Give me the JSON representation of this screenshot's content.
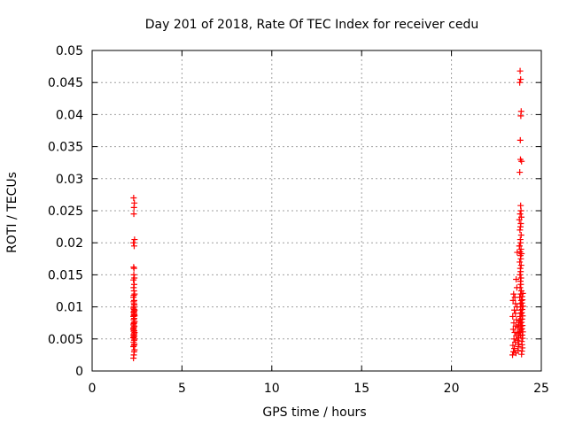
{
  "chart_data": {
    "type": "scatter",
    "title": "Day 201 of 2018, Rate Of TEC Index for receiver cedu",
    "xlabel": "GPS time / hours",
    "ylabel": "ROTI / TECUs",
    "xlim": [
      0,
      25
    ],
    "ylim": [
      0,
      0.05
    ],
    "xticks": [
      0,
      5,
      10,
      15,
      20,
      25
    ],
    "xtick_labels": [
      "0",
      "5",
      "10",
      "15",
      "20",
      "25"
    ],
    "yticks": [
      0,
      0.005,
      0.01,
      0.015,
      0.02,
      0.025,
      0.03,
      0.035,
      0.04,
      0.045,
      0.05
    ],
    "ytick_labels": [
      "0",
      "0.005",
      "0.01",
      "0.015",
      "0.02",
      "0.025",
      "0.03",
      "0.035",
      "0.04",
      "0.045",
      "0.05"
    ],
    "grid": true,
    "marker": "+",
    "color": "#ff0000",
    "series": [
      {
        "x": [
          2.3,
          2.32,
          2.34,
          2.36,
          2.3,
          2.33,
          2.35,
          2.31,
          2.34,
          2.36,
          2.29,
          2.32,
          2.35,
          2.3,
          2.33,
          2.36,
          2.31,
          2.34,
          2.29,
          2.32,
          2.35,
          2.3,
          2.33,
          2.36,
          2.31,
          2.34,
          2.3,
          2.32,
          2.35,
          2.33,
          2.31,
          2.34,
          2.36,
          2.3,
          2.32,
          2.35,
          2.33,
          2.31,
          2.34,
          2.3,
          2.32,
          2.36,
          2.33,
          2.31,
          2.34,
          2.3,
          2.35,
          2.32,
          2.33,
          2.31,
          2.34,
          2.3,
          2.36,
          2.32,
          2.33,
          2.35,
          2.31,
          2.34,
          2.3,
          2.32,
          2.36,
          2.33
        ],
        "y": [
          0.002,
          0.0025,
          0.003,
          0.0033,
          0.0038,
          0.004,
          0.0042,
          0.0045,
          0.0048,
          0.005,
          0.0052,
          0.0053,
          0.0055,
          0.0056,
          0.0058,
          0.006,
          0.0062,
          0.0063,
          0.0065,
          0.0068,
          0.007,
          0.0072,
          0.0075,
          0.0077,
          0.008,
          0.0082,
          0.0085,
          0.0087,
          0.0088,
          0.009,
          0.0092,
          0.0093,
          0.0095,
          0.0098,
          0.01,
          0.0103,
          0.0105,
          0.0108,
          0.011,
          0.0115,
          0.0118,
          0.012,
          0.0125,
          0.013,
          0.0135,
          0.0142,
          0.0145,
          0.015,
          0.016,
          0.0162,
          0.0195,
          0.02,
          0.0205,
          0.0245,
          0.0255,
          0.0262,
          0.027,
          0.0058,
          0.0066,
          0.0074,
          0.0086,
          0.0096
        ]
      },
      {
        "x": [
          23.82,
          23.85,
          23.8,
          23.88,
          23.86,
          23.83,
          23.84,
          23.9,
          23.8,
          23.85,
          23.87,
          23.82,
          23.89,
          23.78,
          23.86,
          23.84,
          23.81,
          23.88,
          23.83,
          23.85,
          23.79,
          23.87,
          23.82,
          23.9,
          23.84,
          23.86,
          23.8,
          23.88,
          23.83,
          23.85,
          23.81,
          23.87,
          23.84,
          23.86,
          23.82,
          23.89,
          23.85,
          23.8,
          23.88,
          23.83,
          23.86,
          23.84,
          23.87,
          23.81,
          23.85,
          23.83,
          23.86,
          23.88,
          23.82,
          23.84
        ],
        "y": [
          0.0468,
          0.0455,
          0.045,
          0.0405,
          0.0398,
          0.036,
          0.033,
          0.0327,
          0.031,
          0.0258,
          0.025,
          0.0245,
          0.024,
          0.0236,
          0.023,
          0.0225,
          0.022,
          0.0212,
          0.0205,
          0.02,
          0.0195,
          0.019,
          0.0186,
          0.0183,
          0.018,
          0.0175,
          0.017,
          0.0165,
          0.016,
          0.0155,
          0.015,
          0.0145,
          0.014,
          0.0135,
          0.013,
          0.0125,
          0.012,
          0.0115,
          0.011,
          0.0105,
          0.01,
          0.0095,
          0.009,
          0.0085,
          0.008,
          0.0075,
          0.007,
          0.0065,
          0.006,
          0.0055
        ]
      },
      {
        "x": [
          23.4,
          23.45,
          23.5,
          23.42,
          23.55,
          23.48,
          23.6,
          23.52,
          23.44,
          23.58,
          23.47,
          23.62,
          23.41,
          23.56,
          23.5,
          23.65,
          23.43,
          23.53,
          23.46,
          23.59,
          23.7,
          23.72,
          23.75,
          23.68,
          23.74,
          23.71,
          23.77,
          23.69,
          23.73,
          23.76,
          23.9,
          23.92,
          23.95,
          23.93,
          23.91,
          23.96,
          23.94,
          23.97,
          23.92,
          23.95,
          23.9,
          23.93,
          23.96,
          23.91,
          23.94,
          23.98,
          23.92,
          23.95,
          23.93,
          23.97,
          23.6,
          23.66,
          23.78,
          23.64,
          23.56
        ],
        "y": [
          0.0025,
          0.003,
          0.0035,
          0.004,
          0.0045,
          0.005,
          0.0055,
          0.006,
          0.0065,
          0.007,
          0.0075,
          0.008,
          0.0085,
          0.009,
          0.0095,
          0.01,
          0.011,
          0.0115,
          0.012,
          0.0028,
          0.0032,
          0.0038,
          0.0042,
          0.0048,
          0.0052,
          0.0058,
          0.0062,
          0.0068,
          0.0072,
          0.0078,
          0.0026,
          0.0031,
          0.0036,
          0.0041,
          0.0046,
          0.0051,
          0.0056,
          0.0061,
          0.0066,
          0.0071,
          0.0076,
          0.0081,
          0.0086,
          0.0091,
          0.0096,
          0.0101,
          0.0106,
          0.0111,
          0.0116,
          0.0121,
          0.0143,
          0.0185,
          0.0195,
          0.013,
          0.0105
        ]
      }
    ]
  }
}
